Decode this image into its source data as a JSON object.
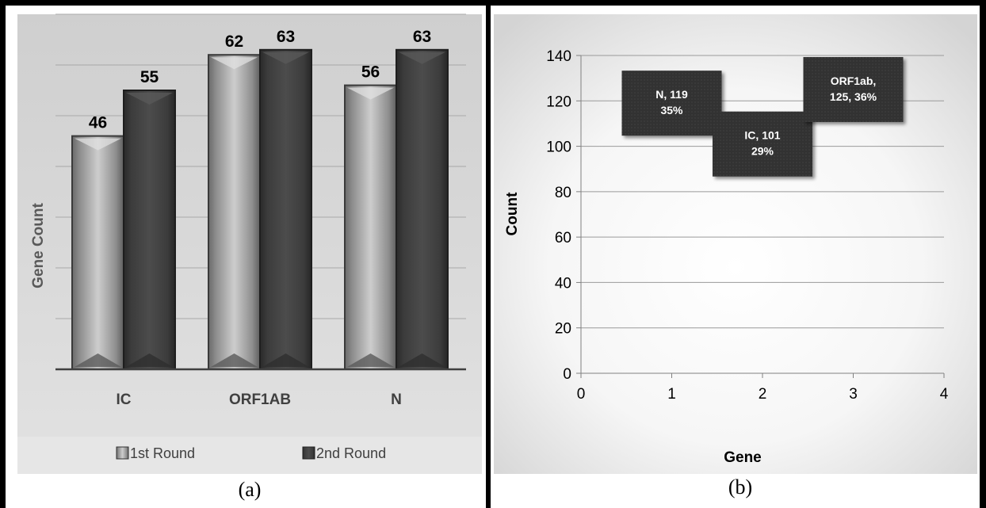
{
  "captions": {
    "a": "(a)",
    "b": "(b)"
  },
  "chart_data": [
    {
      "type": "bar",
      "panel": "(a)",
      "categories": [
        "IC",
        "ORF1AB",
        "N"
      ],
      "series": [
        {
          "name": "1st Round",
          "values": [
            46,
            62,
            56
          ],
          "color": "#a9a9a9"
        },
        {
          "name": "2nd Round",
          "values": [
            55,
            63,
            63
          ],
          "color": "#3f3f3f"
        }
      ],
      "title": "",
      "xlabel": "",
      "ylabel": "Gene Count",
      "ylim": [
        0,
        70
      ],
      "grid": true,
      "legend": "bottom"
    },
    {
      "type": "scatter",
      "panel": "(b)",
      "points": [
        {
          "x": 1,
          "y": 119,
          "label_lines": [
            "N,  119",
            "35%"
          ]
        },
        {
          "x": 2,
          "y": 101,
          "label_lines": [
            "IC,  101",
            "29%"
          ]
        },
        {
          "x": 3,
          "y": 125,
          "label_lines": [
            "ORF1ab,",
            "125, 36%"
          ]
        }
      ],
      "title": "",
      "xlabel": "Gene",
      "ylabel": "Count",
      "xlim": [
        0,
        4
      ],
      "ylim": [
        0,
        140
      ],
      "xticks": [
        0,
        1,
        2,
        3,
        4
      ],
      "yticks": [
        0,
        20,
        40,
        60,
        80,
        100,
        120,
        140
      ],
      "grid": true,
      "legend": "none"
    }
  ]
}
